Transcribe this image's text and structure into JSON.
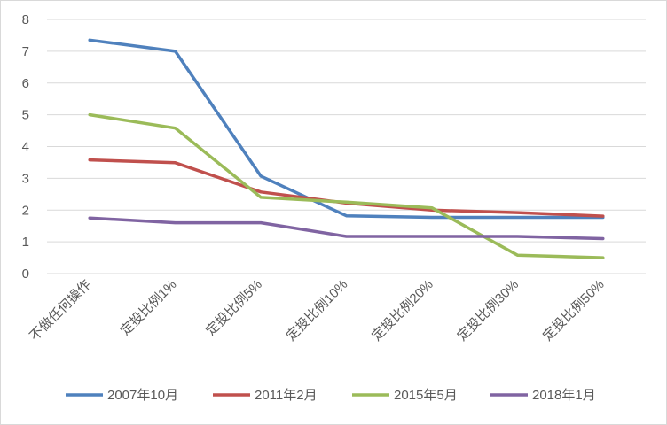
{
  "chart_data": {
    "type": "line",
    "title": "",
    "xlabel": "",
    "ylabel": "",
    "categories": [
      "不做任何操作",
      "定投比例1%",
      "定投比例5%",
      "定投比例10%",
      "定投比例20%",
      "定投比例30%",
      "定投比例50%"
    ],
    "ylim": [
      0,
      8
    ],
    "yticks": [
      0,
      1,
      2,
      3,
      4,
      5,
      6,
      7,
      8
    ],
    "grid": true,
    "legend_position": "bottom",
    "series": [
      {
        "name": "2007年10月",
        "color": "#4f81bd",
        "values": [
          7.35,
          7.0,
          3.07,
          1.82,
          1.77,
          1.77,
          1.77
        ]
      },
      {
        "name": "2011年2月",
        "color": "#c0504d",
        "values": [
          3.58,
          3.49,
          2.57,
          2.22,
          2.0,
          1.92,
          1.81
        ]
      },
      {
        "name": "2015年5月",
        "color": "#9bbb59",
        "values": [
          5.0,
          4.58,
          2.4,
          2.25,
          2.07,
          0.58,
          0.5
        ]
      },
      {
        "name": "2018年1月",
        "color": "#8064a2",
        "values": [
          1.75,
          1.6,
          1.6,
          1.17,
          1.17,
          1.17,
          1.1
        ]
      }
    ]
  }
}
